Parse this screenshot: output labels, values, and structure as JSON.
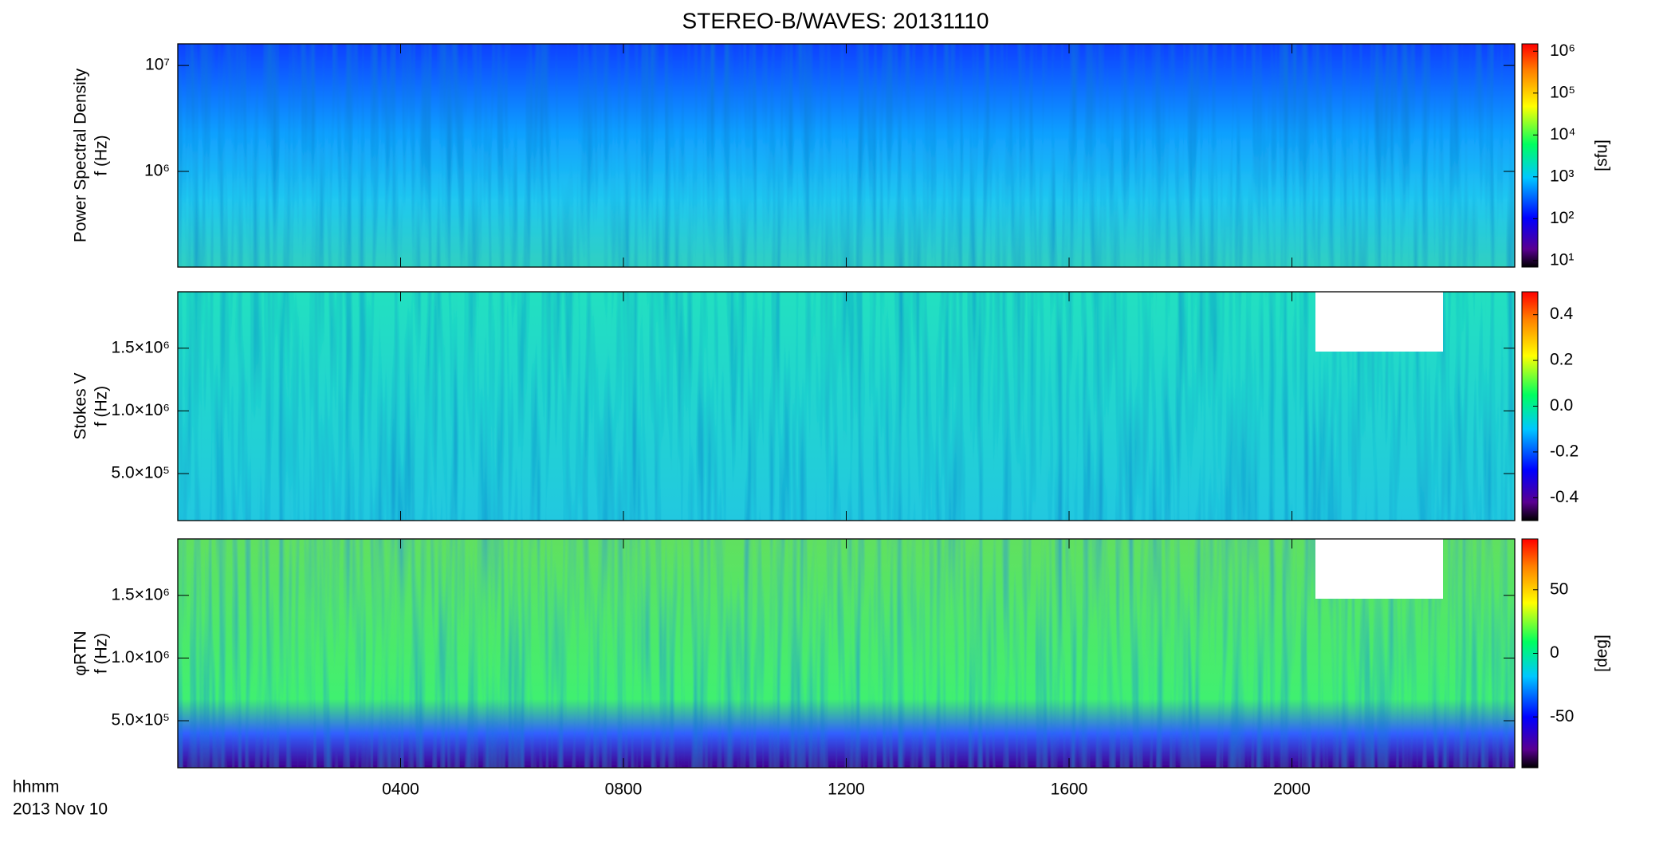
{
  "title": "STEREO-B/WAVES: 20131110",
  "x_axis": {
    "label": "hhmm",
    "date": "2013 Nov 10",
    "xlim": [
      0,
      24
    ],
    "xticks": [
      {
        "value": 4,
        "label": "0400"
      },
      {
        "value": 8,
        "label": "0800"
      },
      {
        "value": 12,
        "label": "1200"
      },
      {
        "value": 16,
        "label": "1600"
      },
      {
        "value": 20,
        "label": "2000"
      }
    ]
  },
  "chart_data": [
    {
      "type": "heatmap",
      "ylabel": [
        "Power Spectral Density",
        "f (Hz)"
      ],
      "ylog": true,
      "ylim": [
        125000,
        16000000
      ],
      "yticks": [
        {
          "value": 1000000,
          "label": "10⁶"
        },
        {
          "value": 10000000,
          "label": "10⁷"
        }
      ],
      "colorbar_label": "[sfu]",
      "clog": true,
      "clim": [
        7,
        1500000
      ],
      "cticks": [
        {
          "value": 10,
          "label": "10¹"
        },
        {
          "value": 100,
          "label": "10²"
        },
        {
          "value": 1000,
          "label": "10³"
        },
        {
          "value": 10000,
          "label": "10⁴"
        },
        {
          "value": 100000,
          "label": "10⁵"
        },
        {
          "value": 1000000,
          "label": "10⁶"
        }
      ]
    },
    {
      "type": "heatmap",
      "ylabel": [
        "Stokes V",
        "f (Hz)"
      ],
      "ylog": false,
      "ylim": [
        125000,
        1950000
      ],
      "yticks": [
        {
          "value": 500000,
          "label": "5.0×10⁵"
        },
        {
          "value": 1000000,
          "label": "1.0×10⁶"
        },
        {
          "value": 1500000,
          "label": "1.5×10⁶"
        }
      ],
      "clog": false,
      "clim": [
        -0.5,
        0.5
      ],
      "cticks": [
        -0.4,
        -0.2,
        {
          "value": 0,
          "label": "0.0"
        },
        0.2,
        0.4
      ]
    },
    {
      "type": "heatmap",
      "ylabel": [
        "φRTN",
        "f (Hz)"
      ],
      "ylog": false,
      "ylim": [
        125000,
        1950000
      ],
      "yticks": [
        {
          "value": 500000,
          "label": "5.0×10⁵"
        },
        {
          "value": 1000000,
          "label": "1.0×10⁶"
        },
        {
          "value": 1500000,
          "label": "1.5×10⁶"
        }
      ],
      "colorbar_label": "[deg]",
      "clog": false,
      "clim": [
        -90,
        90
      ],
      "cticks": [
        -50,
        0,
        50
      ]
    }
  ]
}
